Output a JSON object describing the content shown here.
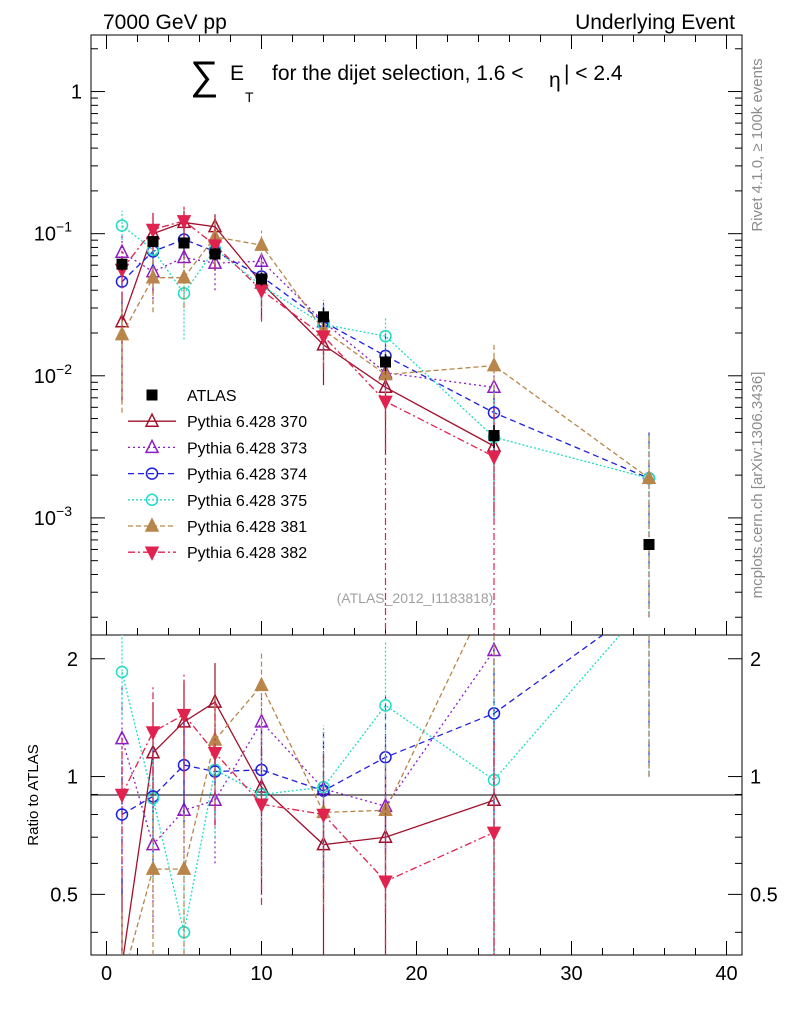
{
  "header": {
    "left": "7000 GeV pp",
    "right": "Underlying Event"
  },
  "side_text": {
    "rivet": "Rivet 4.1.0, ≥ 100k events",
    "mcplots": "mcplots.cern.ch [arXiv:1306.3436]"
  },
  "chart_data": {
    "type": "line",
    "title": {
      "sigma": "∑",
      "e": "E",
      "sub": "T",
      "text": "for the dijet selection, 1.6 <",
      "eta": "η",
      "text2": "| < 2.4"
    },
    "analysis_label": "(ATLAS_2012_I1183818)",
    "top_panel": {
      "yscale": "log",
      "ylim": [
        0.00015,
        2.5
      ],
      "y_ticks": [
        {
          "value": 1,
          "base": "1",
          "exp": ""
        },
        {
          "value": 0.1,
          "base": "10",
          "exp": "−1"
        },
        {
          "value": 0.01,
          "base": "10",
          "exp": "−2"
        },
        {
          "value": 0.001,
          "base": "10",
          "exp": "−3"
        }
      ]
    },
    "ratio_panel": {
      "ylabel": "Ratio to ATLAS",
      "ylim": [
        0.35,
        2.3
      ],
      "y_ticks": [
        "0.5",
        "1",
        "2"
      ],
      "y_tick_values": [
        0.5,
        1,
        2
      ],
      "reference": 1
    },
    "x_axis": {
      "xlim": [
        -1,
        41
      ],
      "ticks": [
        "0",
        "10",
        "20",
        "30",
        "40"
      ],
      "tick_values": [
        0,
        10,
        20,
        30,
        40
      ]
    },
    "data": {
      "name": "ATLAS",
      "color": "#000000",
      "x": [
        1,
        3,
        5,
        7,
        10,
        14,
        18,
        25,
        35
      ],
      "y": [
        0.061,
        0.088,
        0.086,
        0.072,
        0.048,
        0.026,
        0.0125,
        0.0038,
        0.00065
      ],
      "err_lo": [
        0.055,
        0.082,
        0.08,
        0.065,
        0.043,
        0.022,
        0.0108,
        0.0031,
        0.0
      ],
      "err_hi": [
        0.067,
        0.094,
        0.092,
        0.079,
        0.053,
        0.03,
        0.0142,
        0.0045,
        0.0
      ]
    },
    "series": [
      {
        "name": "Pythia 6.428 370",
        "color": "#a1102c",
        "marker": "triangle-open",
        "dash": "",
        "x": [
          1,
          3,
          5,
          7,
          10,
          14,
          18,
          25
        ],
        "y": [
          0.024,
          0.1,
          0.12,
          0.112,
          0.045,
          0.0165,
          0.0083,
          0.0032
        ],
        "err_lo": [
          0.0065,
          0.038,
          0.07,
          0.055,
          0.025,
          0.0086,
          0.0028,
          0.001
        ],
        "err_hi": [
          0.035,
          0.14,
          0.145,
          0.137,
          0.065,
          0.024,
          0.013,
          0.007
        ],
        "ratio": [
          0.33,
          1.15,
          1.38,
          1.55,
          0.94,
          0.67,
          0.7,
          0.87
        ],
        "ratio_lo": [
          0.2,
          0.7,
          0.8,
          1.0,
          0.5,
          0.35,
          0.35,
          0.3
        ],
        "ratio_hi": [
          0.55,
          1.55,
          1.75,
          1.95,
          1.35,
          1.0,
          1.05,
          1.4
        ]
      },
      {
        "name": "Pythia 6.428 373",
        "color": "#8e1bc6",
        "marker": "triangle-open",
        "dash": "2,3",
        "x": [
          1,
          3,
          5,
          7,
          10,
          14,
          18,
          25
        ],
        "y": [
          0.074,
          0.054,
          0.068,
          0.062,
          0.064,
          0.024,
          0.0105,
          0.0083
        ],
        "err_lo": [
          0.045,
          0.032,
          0.045,
          0.04,
          0.04,
          0.014,
          0.0055,
          0.004
        ],
        "err_hi": [
          0.1,
          0.078,
          0.09,
          0.08,
          0.09,
          0.034,
          0.015,
          0.012
        ],
        "ratio": [
          1.25,
          0.67,
          0.82,
          0.87,
          1.38,
          0.93,
          0.84,
          2.1
        ],
        "ratio_lo": [
          0.8,
          0.4,
          0.55,
          0.6,
          0.95,
          0.55,
          0.45,
          1.1
        ],
        "ratio_hi": [
          1.7,
          0.95,
          1.1,
          1.15,
          1.8,
          1.3,
          1.25,
          3.0
        ]
      },
      {
        "name": "Pythia 6.428 374",
        "color": "#1f1fe0",
        "marker": "circle-open",
        "dash": "6,4",
        "x": [
          1,
          3,
          5,
          7,
          10,
          14,
          18,
          25,
          35
        ],
        "y": [
          0.046,
          0.075,
          0.091,
          0.075,
          0.05,
          0.024,
          0.0138,
          0.0055,
          0.0019
        ],
        "err_lo": [
          0.03,
          0.05,
          0.065,
          0.055,
          0.035,
          0.015,
          0.008,
          0.0025,
          0.0002
        ],
        "err_hi": [
          0.065,
          0.1,
          0.12,
          0.1,
          0.068,
          0.034,
          0.02,
          0.009,
          0.004
        ],
        "ratio": [
          0.8,
          0.89,
          1.07,
          1.03,
          1.04,
          0.92,
          1.12,
          1.45,
          2.8
        ],
        "ratio_lo": [
          0.5,
          0.6,
          0.75,
          0.75,
          0.75,
          0.55,
          0.65,
          0.75,
          1.0
        ],
        "ratio_hi": [
          1.1,
          1.2,
          1.4,
          1.3,
          1.35,
          1.3,
          1.6,
          2.2,
          4.5
        ]
      },
      {
        "name": "Pythia 6.428 375",
        "color": "#21dcc4",
        "marker": "circle-open",
        "dash": "2,2",
        "x": [
          1,
          3,
          5,
          7,
          10,
          14,
          18,
          25,
          35
        ],
        "y": [
          0.114,
          0.077,
          0.038,
          0.078,
          0.043,
          0.023,
          0.019,
          0.0037,
          0.0019
        ],
        "err_lo": [
          0.09,
          0.05,
          0.018,
          0.055,
          0.03,
          0.014,
          0.012,
          0.001,
          0.0002
        ],
        "err_hi": [
          0.145,
          0.1,
          0.058,
          0.1,
          0.058,
          0.033,
          0.026,
          0.008,
          0.004
        ],
        "ratio": [
          1.85,
          0.88,
          0.4,
          1.04,
          0.9,
          0.94,
          1.52,
          0.98,
          2.8
        ],
        "ratio_lo": [
          1.4,
          0.55,
          0.2,
          0.7,
          0.55,
          0.55,
          1.0,
          0.3,
          1.0
        ],
        "ratio_hi": [
          2.3,
          1.2,
          0.62,
          1.35,
          1.25,
          1.35,
          2.2,
          2.0,
          4.5
        ]
      },
      {
        "name": "Pythia 6.428 381",
        "color": "#b8864a",
        "marker": "triangle-filled",
        "dash": "5,3",
        "x": [
          1,
          3,
          5,
          7,
          10,
          14,
          18,
          25,
          35
        ],
        "y": [
          0.0195,
          0.049,
          0.049,
          0.095,
          0.083,
          0.021,
          0.0102,
          0.0118,
          0.0019
        ],
        "err_lo": [
          0.0055,
          0.028,
          0.03,
          0.06,
          0.06,
          0.012,
          0.005,
          0.007,
          0.0002
        ],
        "err_hi": [
          0.033,
          0.07,
          0.07,
          0.13,
          0.105,
          0.03,
          0.015,
          0.0165,
          0.004
        ],
        "ratio": [
          0.3,
          0.58,
          0.58,
          1.24,
          1.71,
          0.81,
          0.82,
          3.1,
          2.8
        ],
        "ratio_lo": [
          0.18,
          0.35,
          0.35,
          0.85,
          1.25,
          0.45,
          0.45,
          1.6,
          1.0
        ],
        "ratio_hi": [
          0.45,
          0.82,
          0.82,
          1.6,
          2.1,
          1.15,
          1.2,
          4.5,
          4.5
        ]
      },
      {
        "name": "Pythia 6.428 382",
        "color": "#e0224e",
        "marker": "triangle-down-filled",
        "dash": "7,3,2,3",
        "x": [
          1,
          3,
          5,
          7,
          10,
          14,
          18,
          25
        ],
        "y": [
          0.056,
          0.107,
          0.123,
          0.083,
          0.04,
          0.019,
          0.0066,
          0.0027
        ],
        "err_lo": [
          0.035,
          0.075,
          0.09,
          0.055,
          0.024,
          0.011,
          0.0001,
          0.0001
        ],
        "err_hi": [
          0.075,
          0.14,
          0.155,
          0.11,
          0.056,
          0.028,
          0.013,
          0.006
        ],
        "ratio": [
          0.9,
          1.3,
          1.44,
          1.15,
          0.85,
          0.8,
          0.54,
          0.72
        ],
        "ratio_lo": [
          0.55,
          0.85,
          1.0,
          0.75,
          0.47,
          0.45,
          0.2,
          0.2
        ],
        "ratio_hi": [
          1.25,
          1.7,
          1.85,
          1.55,
          1.25,
          1.15,
          0.9,
          1.3
        ]
      }
    ]
  }
}
